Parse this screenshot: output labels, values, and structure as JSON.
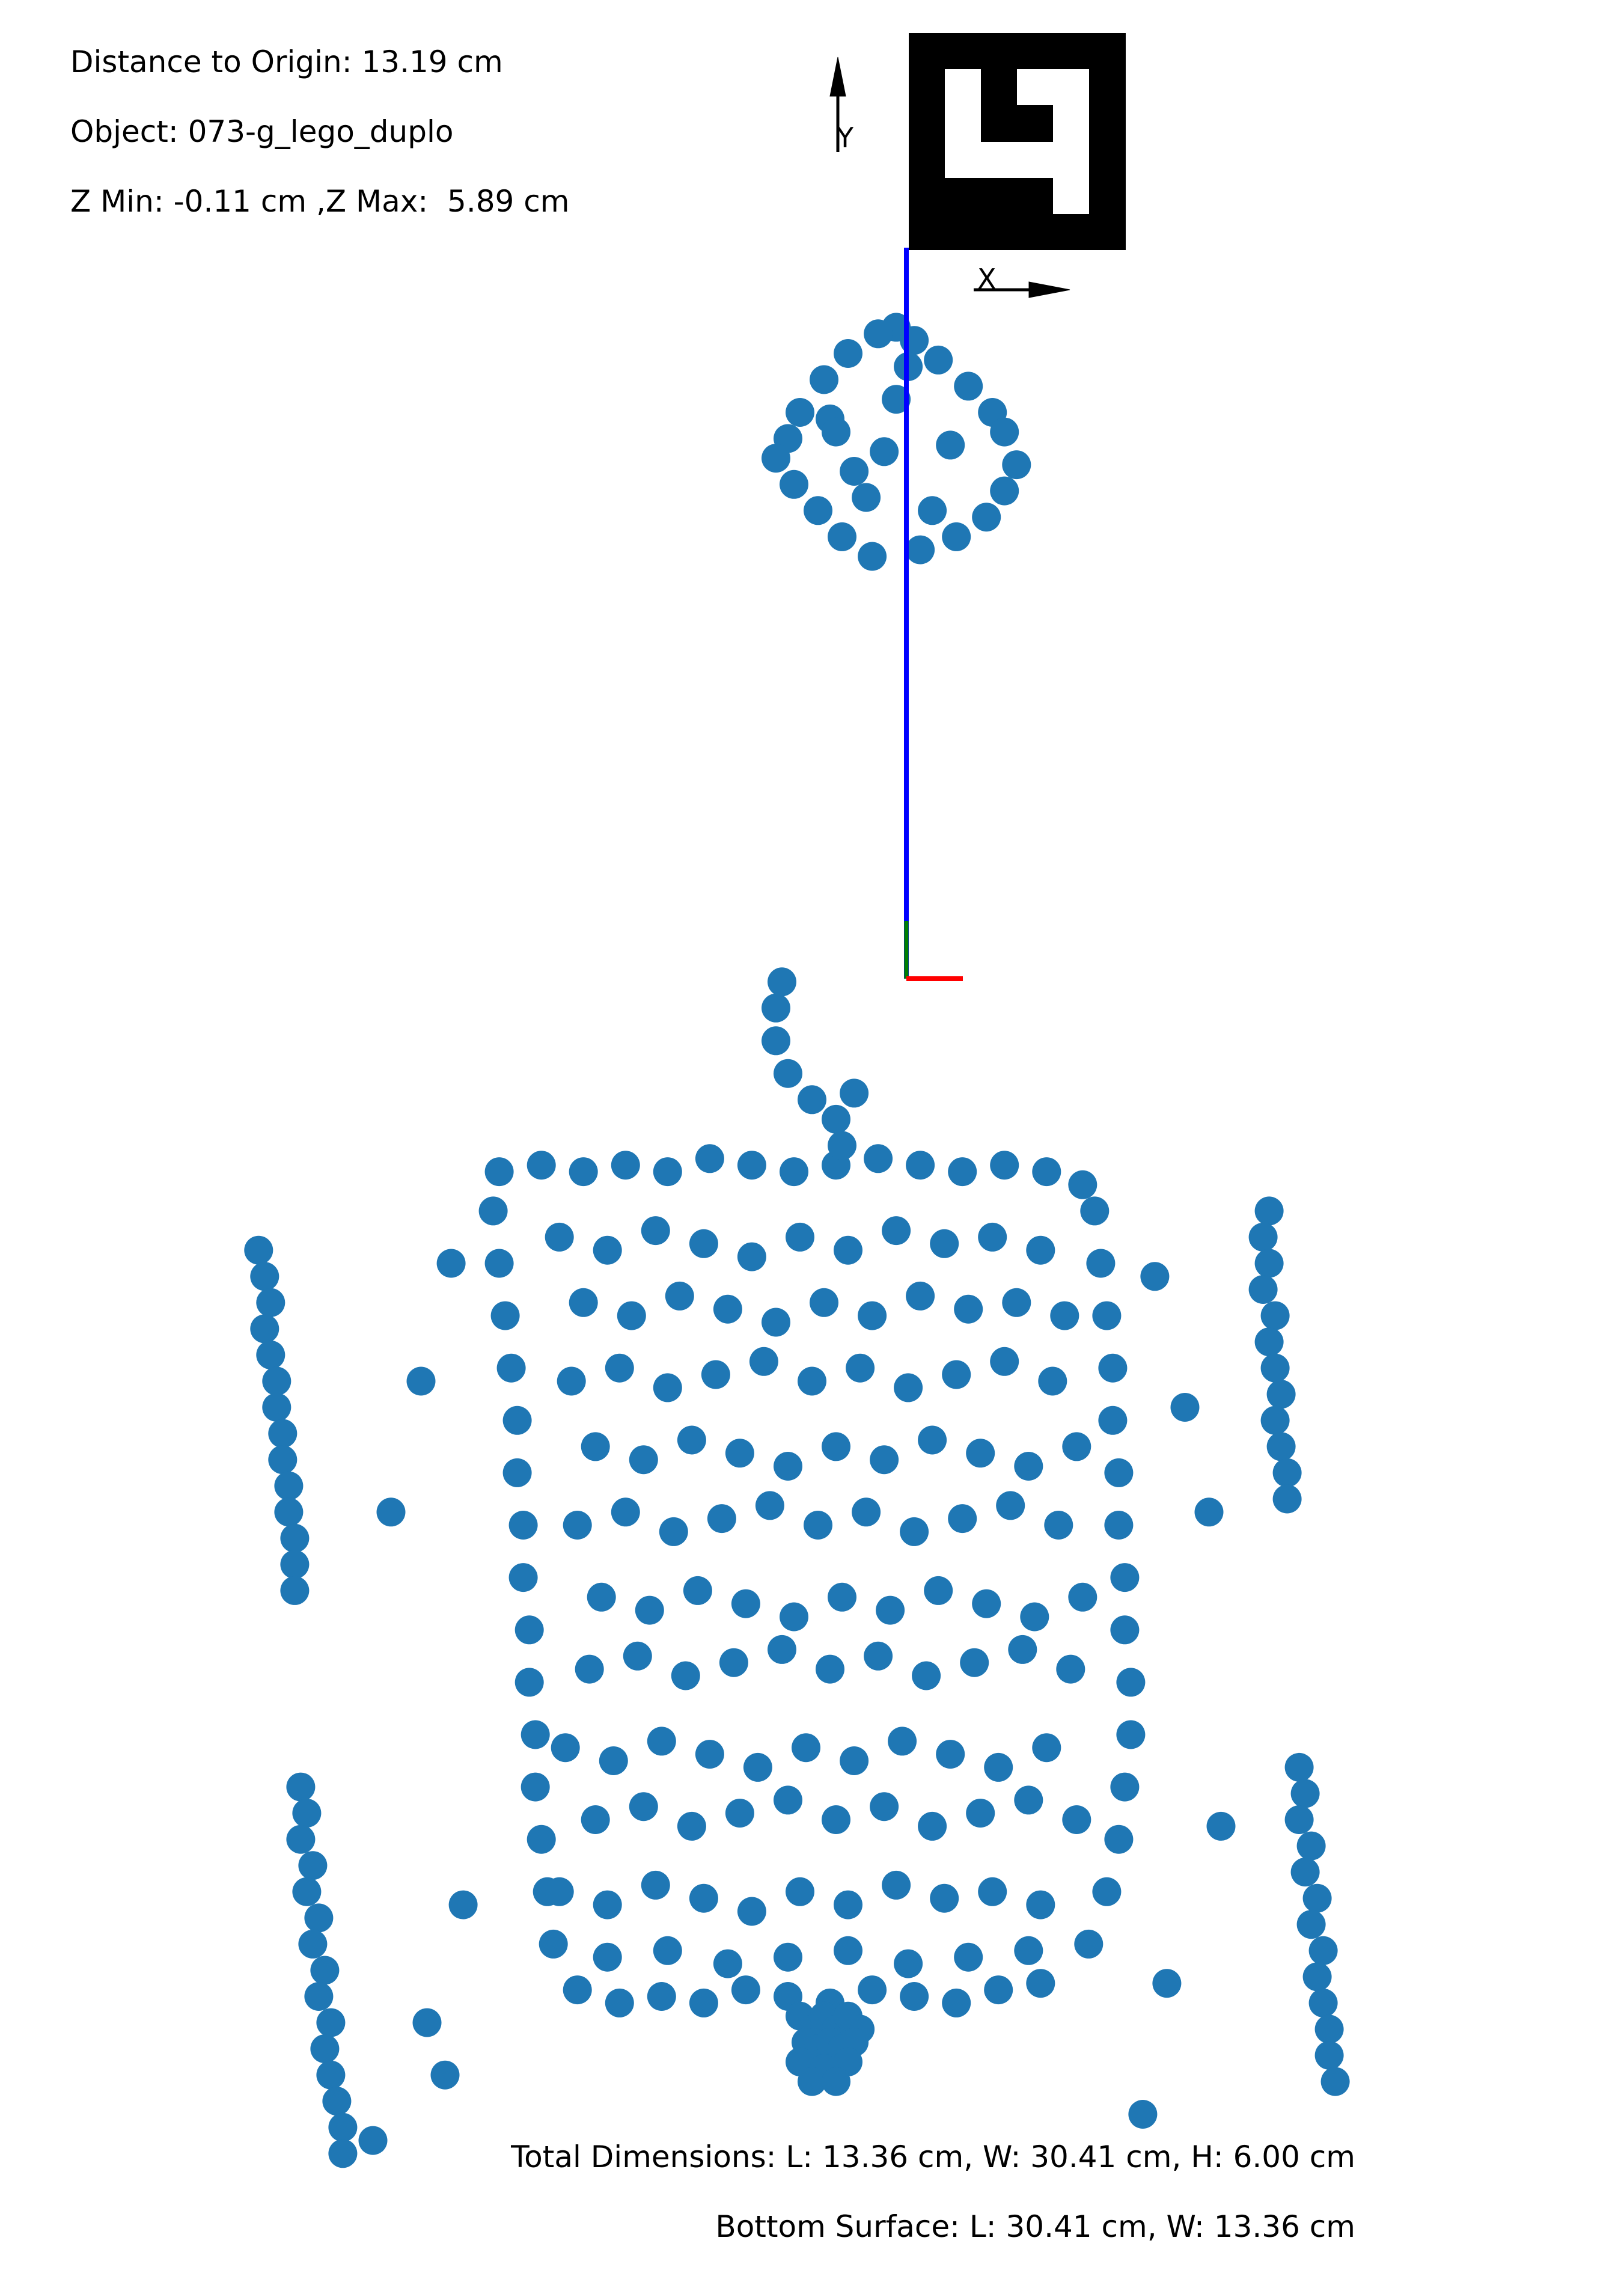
{
  "info": {
    "distance": "Distance to Origin: 13.19 cm",
    "object": "Object: 073-g_lego_duplo",
    "zrange": "Z Min: -0.11 cm ,Z Max:  5.89 cm",
    "dimensions": "Total Dimensions: L: 13.36 cm, W: 30.41 cm, H: 6.00 cm",
    "bottom": "Bottom Surface: L: 30.41 cm, W: 13.36 cm"
  },
  "colors": {
    "points": "#1f77b4",
    "z_axis": "#0000ff",
    "x_axis": "#ff0000",
    "y_axis": "#008000",
    "marker": "#000000"
  },
  "axis_labels": {
    "x": "X",
    "y": "Y"
  },
  "chart_data": {
    "type": "scatter",
    "title": "",
    "xlabel": "",
    "ylabel": "",
    "grid": false,
    "xlim": [
      -15.5,
      11.5
    ],
    "ylim": [
      -18.5,
      16.5
    ],
    "series": [
      {
        "description": "cluster near marker",
        "x": [
          -0.6,
          -0.9,
          -0.3,
          -1.4,
          0.1,
          -1.8,
          0.6,
          -2.2,
          1.0,
          -2.4,
          1.2,
          -2.6,
          1.4,
          -2.3,
          1.2,
          -1.9,
          0.9,
          -1.5,
          0.4,
          -1.0,
          -0.2,
          -0.4,
          -0.8,
          -1.3,
          -1.7,
          0.3,
          -0.6,
          -1.1,
          -1.6,
          0.0
        ],
        "y": [
          11.5,
          11.4,
          11.3,
          11.1,
          11.0,
          10.7,
          10.6,
          10.2,
          10.2,
          9.8,
          9.9,
          9.5,
          9.4,
          9.1,
          9.0,
          8.7,
          8.6,
          8.3,
          8.3,
          8.0,
          8.1,
          10.9,
          9.6,
          9.3,
          10.1,
          9.7,
          10.4,
          8.9,
          9.9,
          8.7
        ]
      },
      {
        "description": "lego duplo body",
        "x": [
          -7.2,
          -6.5,
          -5.8,
          -5.1,
          -4.4,
          -3.7,
          -3.0,
          -2.3,
          -1.6,
          -0.9,
          -0.2,
          0.5,
          1.2,
          1.9,
          2.5,
          -7.3,
          -7.2,
          -7.1,
          -7.0,
          -6.9,
          -6.9,
          -6.8,
          -6.8,
          -6.7,
          -6.7,
          -6.6,
          -6.6,
          -6.5,
          -6.4,
          -6.3,
          2.7,
          2.8,
          2.9,
          3.0,
          3.0,
          3.1,
          3.1,
          3.2,
          3.2,
          3.3,
          3.3,
          3.2,
          3.1,
          2.9,
          2.6,
          -5.9,
          -5.2,
          -4.5,
          -3.8,
          -3.1,
          -2.4,
          -1.7,
          -1.0,
          -0.3,
          0.4,
          1.1,
          1.8,
          -2.6,
          -2.6,
          -2.5,
          -2.4,
          -2.0,
          -1.6,
          -1.5,
          -1.3,
          -6.2,
          -5.4,
          -4.6,
          -3.8,
          -3.0,
          -2.2,
          -1.4,
          -0.6,
          0.2,
          1.0,
          1.8,
          -5.8,
          -5.0,
          -4.2,
          -3.4,
          -2.6,
          -1.8,
          -1.0,
          -0.2,
          0.6,
          1.4,
          2.2,
          -6.0,
          -5.2,
          -4.4,
          -3.6,
          -2.8,
          -2.0,
          -1.2,
          -0.4,
          0.4,
          1.2,
          2.0,
          -5.6,
          -4.8,
          -4.0,
          -3.2,
          -2.4,
          -1.6,
          -0.8,
          0.0,
          0.8,
          1.6,
          2.4,
          -5.9,
          -5.1,
          -4.3,
          -3.5,
          -2.7,
          -1.9,
          -1.1,
          -0.3,
          0.5,
          1.3,
          2.1,
          -5.5,
          -4.7,
          -3.9,
          -3.1,
          -2.3,
          -1.5,
          -0.7,
          0.1,
          0.9,
          1.7,
          2.5,
          -5.7,
          -4.9,
          -4.1,
          -3.3,
          -2.5,
          -1.7,
          -0.9,
          -0.1,
          0.7,
          1.5,
          2.3,
          -6.1,
          -5.3,
          -4.5,
          -3.7,
          -2.9,
          -2.1,
          -1.3,
          -0.5,
          0.3,
          1.1,
          1.9,
          -5.6,
          -4.8,
          -4.0,
          -3.2,
          -2.4,
          -1.6,
          -0.8,
          0.0,
          0.8,
          1.6,
          2.4,
          -6.2,
          -5.4,
          -4.6,
          -3.8,
          -3.0,
          -2.2,
          -1.4,
          -0.6,
          0.2,
          1.0,
          1.8,
          -5.4,
          -4.4,
          -3.4,
          -2.4,
          -1.4,
          -0.4,
          0.6,
          1.6,
          -2.2,
          -2.0,
          -1.8,
          -1.6,
          -1.4,
          -1.2,
          -2.1,
          -1.9,
          -1.7,
          -1.5,
          -1.3,
          -2.2,
          -1.8,
          -1.4,
          -2.0,
          -1.6,
          -11.2,
          -11.1,
          -11.0,
          -11.1,
          -11.0,
          -10.9,
          -10.9,
          -10.8,
          -10.8,
          -10.7,
          -10.7,
          -10.6,
          -10.6,
          -10.6,
          5.6,
          5.5,
          5.6,
          5.5,
          5.7,
          5.6,
          5.7,
          5.8,
          5.7,
          5.8,
          5.9,
          5.9,
          -10.5,
          -10.4,
          -10.5,
          -10.3,
          -10.4,
          -10.2,
          -10.3,
          -10.1,
          -10.2,
          -10.0,
          -10.1,
          -10.0,
          -9.9,
          -9.8,
          -9.8,
          6.1,
          6.2,
          6.1,
          6.3,
          6.2,
          6.4,
          6.3,
          6.5,
          6.4,
          6.5,
          6.6,
          6.6,
          6.7,
          -8.0,
          -8.5,
          -9.0,
          3.7,
          4.2,
          4.6,
          -7.8,
          -8.4,
          -9.3,
          4.8,
          3.9,
          -8.1,
          3.5
        ],
        "y": [
          -1.4,
          -1.3,
          -1.4,
          -1.3,
          -1.4,
          -1.2,
          -1.3,
          -1.4,
          -1.3,
          -1.2,
          -1.3,
          -1.4,
          -1.3,
          -1.4,
          -1.6,
          -2.0,
          -2.8,
          -3.6,
          -4.4,
          -5.2,
          -6.0,
          -6.8,
          -7.6,
          -8.4,
          -9.2,
          -10.0,
          -10.8,
          -11.6,
          -12.4,
          -13.2,
          -2.0,
          -2.8,
          -3.6,
          -4.4,
          -5.2,
          -6.0,
          -6.8,
          -7.6,
          -8.4,
          -9.2,
          -10.0,
          -10.8,
          -11.6,
          -12.4,
          -13.2,
          -13.9,
          -14.1,
          -14.0,
          -14.1,
          -13.9,
          -14.0,
          -14.1,
          -13.9,
          -14.0,
          -14.1,
          -13.9,
          -13.8,
          0.6,
          1.1,
          1.5,
          0.1,
          -0.3,
          -0.6,
          -1.0,
          -0.2,
          -2.4,
          -2.6,
          -2.3,
          -2.5,
          -2.7,
          -2.4,
          -2.6,
          -2.3,
          -2.5,
          -2.4,
          -2.6,
          -3.4,
          -3.6,
          -3.3,
          -3.5,
          -3.7,
          -3.4,
          -3.6,
          -3.3,
          -3.5,
          -3.4,
          -3.6,
          -4.6,
          -4.4,
          -4.7,
          -4.5,
          -4.3,
          -4.6,
          -4.4,
          -4.7,
          -4.5,
          -4.3,
          -4.6,
          -5.6,
          -5.8,
          -5.5,
          -5.7,
          -5.9,
          -5.6,
          -5.8,
          -5.5,
          -5.7,
          -5.9,
          -5.6,
          -6.8,
          -6.6,
          -6.9,
          -6.7,
          -6.5,
          -6.8,
          -6.6,
          -6.9,
          -6.7,
          -6.5,
          -6.8,
          -7.9,
          -8.1,
          -7.8,
          -8.0,
          -8.2,
          -7.9,
          -8.1,
          -7.8,
          -8.0,
          -8.2,
          -7.9,
          -9.0,
          -8.8,
          -9.1,
          -8.9,
          -8.7,
          -9.0,
          -8.8,
          -9.1,
          -8.9,
          -8.7,
          -9.0,
          -10.2,
          -10.4,
          -10.1,
          -10.3,
          -10.5,
          -10.2,
          -10.4,
          -10.1,
          -10.3,
          -10.5,
          -10.2,
          -11.3,
          -11.1,
          -11.4,
          -11.2,
          -11.0,
          -11.3,
          -11.1,
          -11.4,
          -11.2,
          -11.0,
          -11.3,
          -12.4,
          -12.6,
          -12.3,
          -12.5,
          -12.7,
          -12.4,
          -12.6,
          -12.3,
          -12.5,
          -12.4,
          -12.6,
          -13.4,
          -13.3,
          -13.5,
          -13.4,
          -13.3,
          -13.5,
          -13.4,
          -13.3,
          -14.3,
          -14.5,
          -14.3,
          -14.5,
          -14.3,
          -14.5,
          -14.7,
          -14.8,
          -14.7,
          -14.8,
          -14.7,
          -15.0,
          -15.1,
          -15.0,
          -15.3,
          -15.3,
          -2.6,
          -3.0,
          -3.4,
          -3.8,
          -4.2,
          -4.6,
          -5.0,
          -5.4,
          -5.8,
          -6.2,
          -6.6,
          -7.0,
          -7.4,
          -7.8,
          -2.0,
          -2.4,
          -2.8,
          -3.2,
          -3.6,
          -4.0,
          -4.4,
          -4.8,
          -5.2,
          -5.6,
          -6.0,
          -6.4,
          -10.8,
          -11.2,
          -11.6,
          -12.0,
          -12.4,
          -12.8,
          -13.2,
          -13.6,
          -14.0,
          -14.4,
          -14.8,
          -15.2,
          -15.6,
          -16.0,
          -16.4,
          -10.5,
          -10.9,
          -11.3,
          -11.7,
          -12.1,
          -12.5,
          -12.9,
          -13.3,
          -13.7,
          -14.1,
          -14.5,
          -14.9,
          -15.3,
          -2.8,
          -4.6,
          -6.6,
          -3.0,
          -5.0,
          -6.6,
          -12.6,
          -14.4,
          -16.2,
          -11.4,
          -13.8,
          -15.2,
          -15.8
        ]
      }
    ]
  }
}
